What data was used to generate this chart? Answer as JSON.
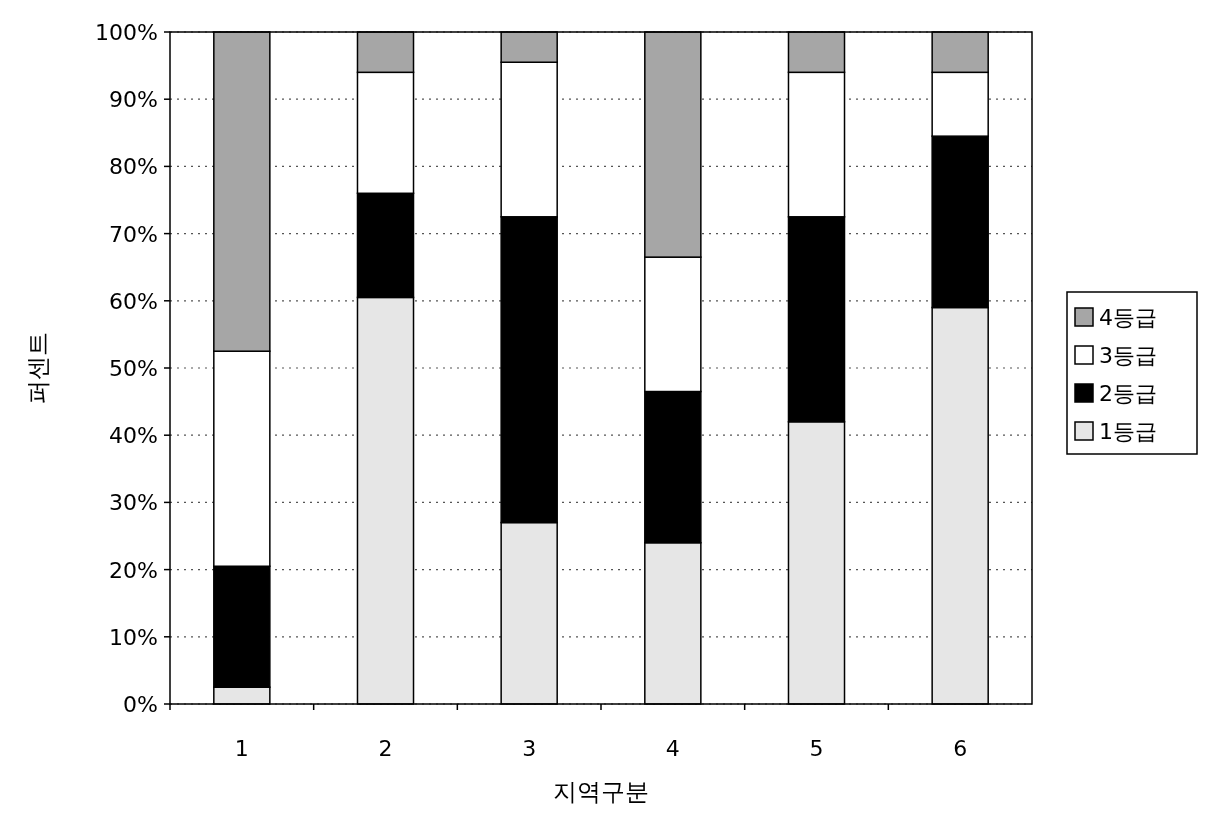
{
  "chart_data": {
    "type": "bar",
    "stacked": true,
    "xlabel": "지역구분",
    "ylabel": "퍼센트",
    "categories": [
      "1",
      "2",
      "3",
      "4",
      "5",
      "6"
    ],
    "series": [
      {
        "name": "1등급",
        "color": "#e6e6e6",
        "values": [
          2.5,
          60.5,
          27,
          24,
          42,
          59
        ]
      },
      {
        "name": "2등급",
        "color": "#000000",
        "values": [
          18,
          15.5,
          45.5,
          22.5,
          30.5,
          25.5
        ]
      },
      {
        "name": "3등급",
        "color": "#ffffff",
        "values": [
          32,
          18,
          23,
          20,
          21.5,
          9.5
        ]
      },
      {
        "name": "4등급",
        "color": "#a6a6a6",
        "values": [
          47.5,
          6,
          4.5,
          33.5,
          6,
          6
        ]
      }
    ],
    "ylim": [
      0,
      100
    ],
    "yticks": [
      {
        "value": 0,
        "label": "0%"
      },
      {
        "value": 10,
        "label": "10%"
      },
      {
        "value": 20,
        "label": "20%"
      },
      {
        "value": 30,
        "label": "30%"
      },
      {
        "value": 40,
        "label": "40%"
      },
      {
        "value": 50,
        "label": "50%"
      },
      {
        "value": 60,
        "label": "60%"
      },
      {
        "value": 70,
        "label": "70%"
      },
      {
        "value": 80,
        "label": "80%"
      },
      {
        "value": 90,
        "label": "90%"
      },
      {
        "value": 100,
        "label": "100%"
      }
    ],
    "grid": "y",
    "legend": "right"
  }
}
